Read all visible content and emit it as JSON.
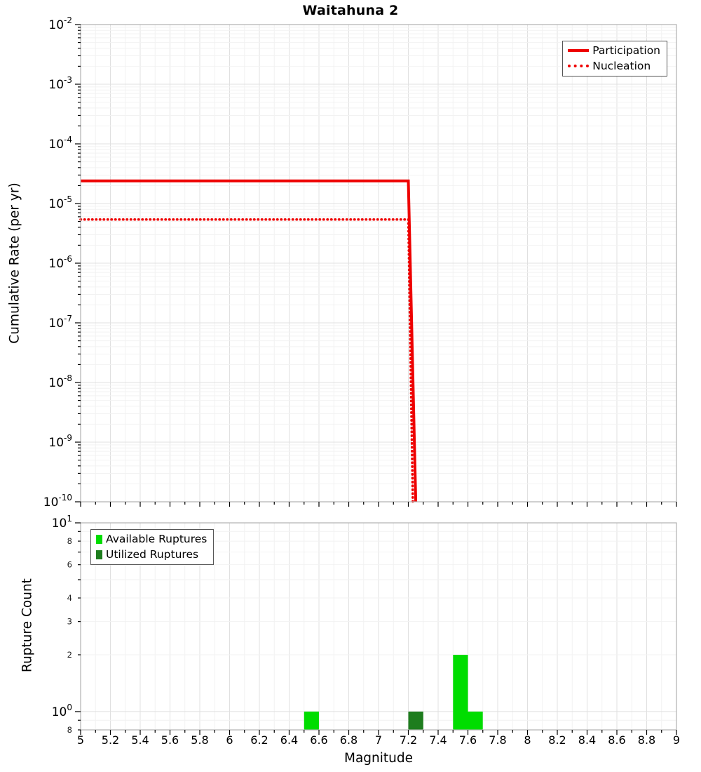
{
  "title": "Waitahuna 2",
  "colors": {
    "grid_minor": "#f2f2f2",
    "grid_major": "#e0e0e0",
    "border": "#b0b0b0",
    "axis_text": "#000000"
  },
  "chart_data": [
    {
      "type": "line",
      "panel": "top",
      "title": "Waitahuna 2",
      "ylabel": "Cumulative Rate (per yr)",
      "xlim": [
        5,
        9
      ],
      "ylim": [
        1e-10,
        0.01
      ],
      "yscale": "log",
      "grid": true,
      "legend_position": "top-right",
      "y_tick_exponents": [
        -2,
        -3,
        -4,
        -5,
        -6,
        -7,
        -8,
        -9,
        -10
      ],
      "series": [
        {
          "name": "Participation",
          "color": "#ee0000",
          "style": "solid",
          "width": 4,
          "points": [
            [
              5,
              2.4e-05
            ],
            [
              7.2,
              2.4e-05
            ],
            [
              7.25,
              1e-10
            ]
          ]
        },
        {
          "name": "Nucleation",
          "color": "#ee0000",
          "style": "dotted",
          "width": 3.5,
          "points": [
            [
              5,
              5.4e-06
            ],
            [
              7.2,
              5.4e-06
            ],
            [
              7.23,
              1e-10
            ]
          ]
        }
      ]
    },
    {
      "type": "bar",
      "panel": "bottom",
      "ylabel": "Rupture Count",
      "xlabel": "Magnitude",
      "xlim": [
        5,
        9
      ],
      "ylim": [
        0.8,
        10
      ],
      "yscale": "log",
      "grid": true,
      "legend_position": "top-left",
      "bar_width": 0.1,
      "x_ticks": [
        5,
        5.2,
        5.4,
        5.6,
        5.8,
        6,
        6.2,
        6.4,
        6.6,
        6.8,
        7,
        7.2,
        7.4,
        7.6,
        7.8,
        8,
        8.2,
        8.4,
        8.6,
        8.8,
        9
      ],
      "x_tick_labels": [
        "5",
        "5.2",
        "5.4",
        "5.6",
        "5.8",
        "6",
        "6.2",
        "6.4",
        "6.6",
        "6.8",
        "7",
        "7.2",
        "7.4",
        "7.6",
        "7.8",
        "8",
        "8.2",
        "8.4",
        "8.6",
        "8.8",
        "9"
      ],
      "y_tick_labels": [
        {
          "v": 10,
          "label": "10",
          "exp": "1"
        },
        {
          "v": 8,
          "label": "8"
        },
        {
          "v": 6,
          "label": "6"
        },
        {
          "v": 4,
          "label": "4"
        },
        {
          "v": 3,
          "label": "3"
        },
        {
          "v": 2,
          "label": "2"
        },
        {
          "v": 1,
          "label": "10",
          "exp": "0"
        },
        {
          "v": 0.8,
          "label": "8"
        }
      ],
      "series": [
        {
          "name": "Available Ruptures",
          "color": "#00dd00",
          "bars": [
            {
              "x": 6.55,
              "count": 1
            },
            {
              "x": 7.55,
              "count": 2
            },
            {
              "x": 7.65,
              "count": 1
            }
          ]
        },
        {
          "name": "Utilized Ruptures",
          "color": "#1e7d1e",
          "bars": [
            {
              "x": 7.25,
              "count": 1
            }
          ]
        }
      ]
    }
  ]
}
